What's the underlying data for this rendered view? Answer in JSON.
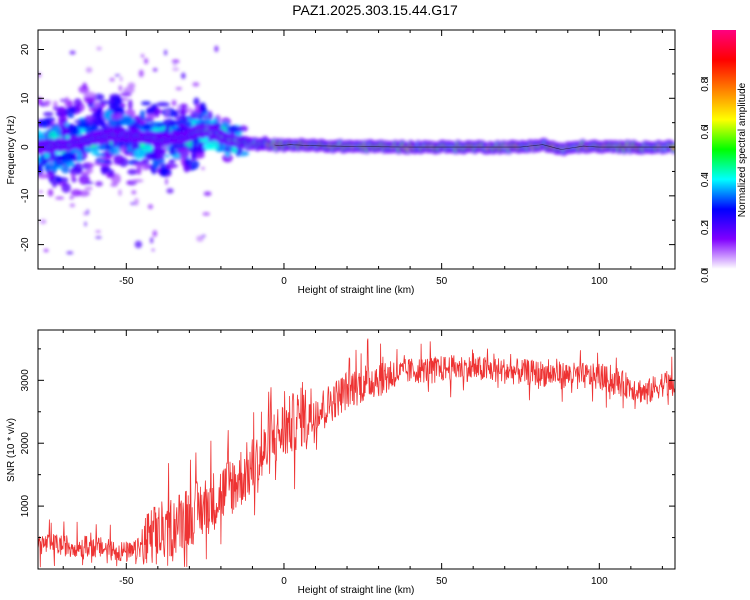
{
  "title": "PAZ1.2025.303.15.44.G17",
  "chart_data": [
    {
      "type": "heatmap",
      "title": "PAZ1.2025.303.15.44.G17",
      "xlabel": "Height of straight line (km)",
      "ylabel": "Frequency (Hz)",
      "xlim": [
        -78,
        124
      ],
      "ylim": [
        -25,
        24
      ],
      "xticks": [
        -50,
        0,
        50,
        100
      ],
      "yticks": [
        -20,
        -10,
        0,
        10,
        20
      ],
      "ridge": {
        "x": [
          -78,
          -70,
          -62,
          -55,
          -48,
          -40,
          -32,
          -26,
          -22,
          -18,
          -14,
          -10,
          -6,
          -2,
          2,
          8,
          15,
          25,
          40,
          60,
          75,
          82,
          88,
          95,
          100,
          110,
          124
        ],
        "freq": [
          0,
          0.5,
          1.5,
          2.5,
          2.5,
          1.5,
          2,
          3.5,
          3,
          1.5,
          1,
          0.5,
          0.8,
          0.3,
          0.5,
          0.3,
          0.2,
          0.1,
          0,
          0,
          0,
          0.5,
          -0.5,
          0.2,
          0,
          0,
          0
        ]
      },
      "colorbar": {
        "label": "Normalized spectral amplitude",
        "ticks": [
          "0.0",
          "0.2",
          "0.4",
          "0.6",
          "0.8"
        ],
        "tick_values": [
          0,
          0.2,
          0.4,
          0.6,
          0.8
        ],
        "range": [
          0,
          1
        ],
        "colors": [
          "#ffffff",
          "#8000ff",
          "#0000ff",
          "#00ffff",
          "#00ff00",
          "#ffff00",
          "#ff8000",
          "#ff0000",
          "#ff0080"
        ]
      }
    },
    {
      "type": "line",
      "xlabel": "Height of straight line (km)",
      "ylabel": "SNR (10 * v/v)",
      "xlim": [
        -78,
        124
      ],
      "ylim": [
        0,
        3800
      ],
      "xticks": [
        -50,
        0,
        50,
        100
      ],
      "yticks": [
        1000,
        2000,
        3000
      ],
      "color": "#ee3333",
      "trend": {
        "x": [
          -78,
          -60,
          -48,
          -42,
          -35,
          -28,
          -22,
          -15,
          -8,
          -3,
          0,
          5,
          10,
          15,
          20,
          30,
          40,
          55,
          70,
          85,
          100,
          110,
          115,
          120,
          124
        ],
        "y": [
          400,
          350,
          250,
          500,
          700,
          900,
          1100,
          1400,
          1700,
          2100,
          2200,
          2400,
          2500,
          2650,
          2850,
          3050,
          3150,
          3200,
          3150,
          3100,
          3050,
          2900,
          2800,
          2950,
          2900
        ]
      }
    }
  ]
}
